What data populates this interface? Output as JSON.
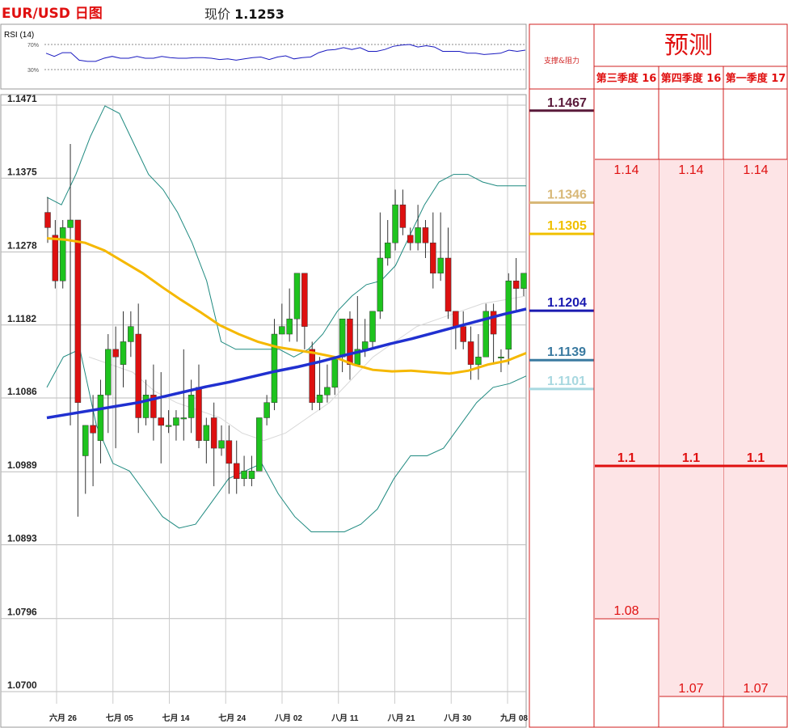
{
  "header": {
    "title": "EUR/USD 日图",
    "price_label": "现价",
    "price_value": "1.1253"
  },
  "rsi": {
    "label": "RSI (14)",
    "upper": "70%",
    "lower": "30%",
    "values": [
      56,
      51,
      57,
      57,
      45,
      43,
      43,
      48,
      51,
      48,
      48,
      51,
      48,
      48,
      51,
      49,
      48,
      48,
      49,
      49,
      48,
      46,
      47,
      45,
      47,
      49,
      50,
      46,
      50,
      52,
      47,
      49,
      50,
      57,
      61,
      62,
      65,
      62,
      65,
      59,
      59,
      62,
      67,
      69,
      70,
      66,
      68,
      66,
      59,
      59,
      59,
      56,
      56,
      54,
      55,
      56,
      61,
      59,
      61
    ]
  },
  "chart_data": {
    "type": "candlestick",
    "title": "EUR/USD 日图",
    "ylim": [
      1.07,
      1.1471
    ],
    "y_ticks": [
      "1.1471",
      "1.1375",
      "1.1278",
      "1.1182",
      "1.1086",
      "1.0989",
      "1.0893",
      "1.0796",
      "1.0700"
    ],
    "x_ticks": [
      "六月 26",
      "七月 05",
      "七月 14",
      "七月 24",
      "八月 02",
      "八月 11",
      "八月 21",
      "八月 30",
      "九月 08"
    ],
    "grid": true,
    "candles": [
      [
        1.133,
        1.131,
        1.135,
        1.129
      ],
      [
        1.13,
        1.124,
        1.132,
        1.123
      ],
      [
        1.124,
        1.131,
        1.132,
        1.123
      ],
      [
        1.131,
        1.132,
        1.142,
        1.105
      ],
      [
        1.132,
        1.108,
        1.132,
        1.093
      ],
      [
        1.101,
        1.105,
        1.105,
        1.096
      ],
      [
        1.105,
        1.104,
        1.109,
        1.097
      ],
      [
        1.103,
        1.109,
        1.111,
        1.1
      ],
      [
        1.109,
        1.115,
        1.117,
        1.104
      ],
      [
        1.115,
        1.114,
        1.118,
        1.102
      ],
      [
        1.113,
        1.116,
        1.12,
        1.11
      ],
      [
        1.116,
        1.118,
        1.12,
        1.114
      ],
      [
        1.117,
        1.106,
        1.121,
        1.104
      ],
      [
        1.106,
        1.109,
        1.111,
        1.105
      ],
      [
        1.109,
        1.106,
        1.113,
        1.103
      ],
      [
        1.106,
        1.105,
        1.112,
        1.1
      ],
      [
        1.105,
        1.105,
        1.107,
        1.104
      ],
      [
        1.105,
        1.106,
        1.107,
        1.103
      ],
      [
        1.106,
        1.106,
        1.115,
        1.103
      ],
      [
        1.106,
        1.109,
        1.111,
        1.104
      ],
      [
        1.11,
        1.103,
        1.113,
        1.102
      ],
      [
        1.103,
        1.105,
        1.106,
        1.1
      ],
      [
        1.106,
        1.102,
        1.108,
        1.097
      ],
      [
        1.102,
        1.103,
        1.105,
        1.101
      ],
      [
        1.103,
        1.1,
        1.105,
        1.096
      ],
      [
        1.1,
        1.098,
        1.103,
        1.096
      ],
      [
        1.098,
        1.099,
        1.101,
        1.097
      ],
      [
        1.098,
        1.099,
        1.101,
        1.097
      ],
      [
        1.099,
        1.106,
        1.106,
        1.099
      ],
      [
        1.106,
        1.108,
        1.109,
        1.105
      ],
      [
        1.108,
        1.117,
        1.119,
        1.107
      ],
      [
        1.117,
        1.118,
        1.121,
        1.117
      ],
      [
        1.117,
        1.119,
        1.123,
        1.116
      ],
      [
        1.119,
        1.125,
        1.125,
        1.116
      ],
      [
        1.125,
        1.118,
        1.125,
        1.115
      ],
      [
        1.115,
        1.108,
        1.116,
        1.107
      ],
      [
        1.108,
        1.109,
        1.114,
        1.107
      ],
      [
        1.109,
        1.11,
        1.113,
        1.108
      ],
      [
        1.11,
        1.114,
        1.114,
        1.109
      ],
      [
        1.114,
        1.119,
        1.119,
        1.112
      ],
      [
        1.119,
        1.113,
        1.12,
        1.111
      ],
      [
        1.113,
        1.115,
        1.122,
        1.113
      ],
      [
        1.115,
        1.116,
        1.119,
        1.114
      ],
      [
        1.116,
        1.12,
        1.12,
        1.115
      ],
      [
        1.12,
        1.127,
        1.133,
        1.119
      ],
      [
        1.127,
        1.129,
        1.132,
        1.126
      ],
      [
        1.129,
        1.134,
        1.136,
        1.128
      ],
      [
        1.134,
        1.131,
        1.136,
        1.13
      ],
      [
        1.13,
        1.129,
        1.131,
        1.128
      ],
      [
        1.129,
        1.131,
        1.134,
        1.128
      ],
      [
        1.131,
        1.129,
        1.132,
        1.127
      ],
      [
        1.129,
        1.125,
        1.133,
        1.123
      ],
      [
        1.125,
        1.127,
        1.133,
        1.124
      ],
      [
        1.127,
        1.12,
        1.131,
        1.119
      ],
      [
        1.12,
        1.118,
        1.12,
        1.115
      ],
      [
        1.118,
        1.116,
        1.12,
        1.115
      ],
      [
        1.116,
        1.113,
        1.118,
        1.111
      ],
      [
        1.113,
        1.114,
        1.117,
        1.111
      ],
      [
        1.114,
        1.12,
        1.121,
        1.114
      ],
      [
        1.12,
        1.117,
        1.121,
        1.113
      ],
      [
        1.114,
        1.114,
        1.115,
        1.112
      ],
      [
        1.115,
        1.124,
        1.125,
        1.113
      ],
      [
        1.124,
        1.123,
        1.127,
        1.12
      ],
      [
        1.123,
        1.125,
        1.125,
        1.122
      ]
    ],
    "ma_blue": [
      1.106,
      1.1065,
      1.107,
      1.1075,
      1.108,
      1.1087,
      1.1094,
      1.1101,
      1.1107,
      1.1114,
      1.1121,
      1.1127,
      1.1134,
      1.1142,
      1.1149,
      1.1157,
      1.1164,
      1.1172,
      1.118,
      1.1188,
      1.1196,
      1.1203
    ],
    "ma_yellow": [
      1.1296,
      1.1294,
      1.129,
      1.128,
      1.1265,
      1.125,
      1.1232,
      1.1215,
      1.1199,
      1.1182,
      1.117,
      1.116,
      1.1153,
      1.1149,
      1.1145,
      1.114,
      1.113,
      1.1123,
      1.1121,
      1.1122,
      1.112,
      1.1118,
      1.1122,
      1.113,
      1.1135,
      1.1145
    ],
    "bb_upper": [
      1.135,
      1.134,
      1.138,
      1.143,
      1.147,
      1.146,
      1.142,
      1.138,
      1.136,
      1.133,
      1.129,
      1.124,
      1.116,
      1.115,
      1.115,
      1.115,
      1.115,
      1.114,
      1.115,
      1.117,
      1.12,
      1.122,
      1.1235,
      1.124,
      1.126,
      1.13,
      1.134,
      1.137,
      1.138,
      1.138,
      1.137,
      1.1365,
      1.1365,
      1.1365
    ],
    "bb_lower": [
      1.11,
      1.114,
      1.115,
      1.105,
      1.1,
      1.099,
      1.096,
      1.093,
      1.0915,
      1.092,
      1.095,
      1.098,
      1.099,
      1.1,
      1.096,
      1.093,
      1.091,
      1.091,
      1.091,
      1.092,
      1.094,
      1.098,
      1.101,
      1.101,
      1.102,
      1.105,
      1.108,
      1.11,
      1.1105,
      1.1115
    ],
    "bb_mid": [
      1.114,
      1.113,
      1.112,
      1.1095,
      1.108,
      1.107,
      1.106,
      1.104,
      1.103,
      1.104,
      1.106,
      1.108,
      1.111,
      1.114,
      1.116,
      1.118,
      1.119,
      1.12,
      1.121,
      1.1215,
      1.122
    ]
  },
  "support_resistance": {
    "header": "支撑&阻力",
    "levels": [
      {
        "label": "1.1467",
        "color": "#5a1a3a"
      },
      {
        "label": "1.1346",
        "color": "#d8b878"
      },
      {
        "label": "1.1305",
        "color": "#f0c000"
      },
      {
        "label": "1.1204",
        "color": "#1a1ab0"
      },
      {
        "label": "1.1139",
        "color": "#3a7aa0"
      },
      {
        "label": "1.1101",
        "color": "#a8d8e0"
      }
    ]
  },
  "forecast": {
    "title": "预测",
    "columns": [
      "第三季度 16",
      "第四季度 16",
      "第一季度 17"
    ],
    "high": [
      "1.14",
      "1.14",
      "1.14"
    ],
    "mid": [
      "1.1",
      "1.1",
      "1.1"
    ],
    "low": [
      "1.08",
      "1.07",
      "1.07"
    ]
  }
}
